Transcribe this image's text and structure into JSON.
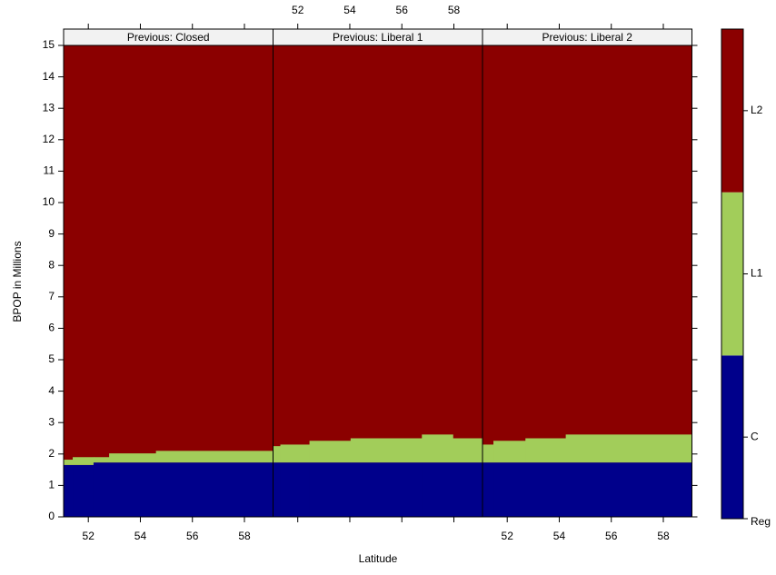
{
  "chart_data": {
    "type": "levelplot",
    "xlabel": "Latitude",
    "ylabel": "BPOP in Millions",
    "xlim": [
      51.05,
      59.1
    ],
    "ylim": [
      0,
      15
    ],
    "xticks": [
      52,
      54,
      56,
      58
    ],
    "yticks": [
      0,
      1,
      2,
      3,
      4,
      5,
      6,
      7,
      8,
      9,
      10,
      11,
      12,
      13,
      14,
      15
    ],
    "colorkey": {
      "labels": [
        "Reg",
        "C",
        "L1",
        "L2"
      ],
      "colors": [
        "#00008b",
        "#a2cd5a",
        "#8b0000"
      ]
    },
    "panels": [
      {
        "title": "Previous: Closed",
        "bins": [
          51.05,
          51.4,
          52.2,
          52.8,
          54.6,
          59.1
        ],
        "series": [
          {
            "values": [
              1.65,
              1.65,
              1.73,
              1.73,
              1.73
            ]
          },
          {
            "values": [
              0.17,
              0.25,
              0.17,
              0.29,
              0.37
            ]
          }
        ]
      },
      {
        "title": "Previous: Liberal 1",
        "bins": [
          51.05,
          51.33,
          52.45,
          54.03,
          56.77,
          57.96,
          59.1
        ],
        "series": [
          {
            "values": [
              1.73,
              1.73,
              1.73,
              1.73,
              1.73,
              1.73
            ]
          },
          {
            "values": [
              0.52,
              0.57,
              0.69,
              0.77,
              0.89,
              0.77
            ]
          }
        ]
      },
      {
        "title": "Previous:  Liberal 2",
        "bins": [
          51.05,
          51.47,
          52.7,
          54.25,
          59.1
        ],
        "series": [
          {
            "values": [
              1.73,
              1.73,
              1.73,
              1.73
            ]
          },
          {
            "values": [
              0.57,
              0.69,
              0.77,
              0.89
            ]
          }
        ]
      }
    ]
  }
}
